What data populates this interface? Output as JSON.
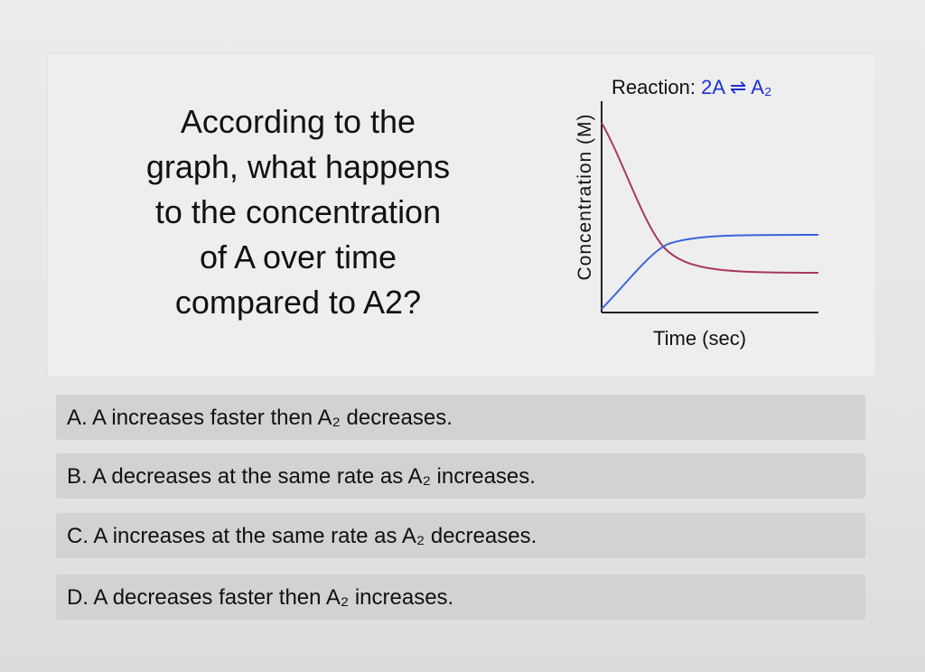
{
  "question": {
    "lines": [
      "According to the",
      "graph, what happens",
      "to the concentration",
      "of A over time",
      "compared to A2?"
    ]
  },
  "graph": {
    "reaction_label": "Reaction:",
    "reaction_equation": "2A ⇌ A₂",
    "ylabel": "Concentration (M)",
    "xlabel": "Time (sec)",
    "colors": {
      "A": "#a8385a",
      "A2": "#3b63d9",
      "axis": "#222222"
    }
  },
  "options": [
    {
      "label": "A. A increases faster then A₂ decreases."
    },
    {
      "label": "B. A decreases at the same rate as A₂ increases."
    },
    {
      "label": "C. A increases at the same rate as A₂ decreases."
    },
    {
      "label": "D. A decreases faster then A₂ increases."
    }
  ]
}
